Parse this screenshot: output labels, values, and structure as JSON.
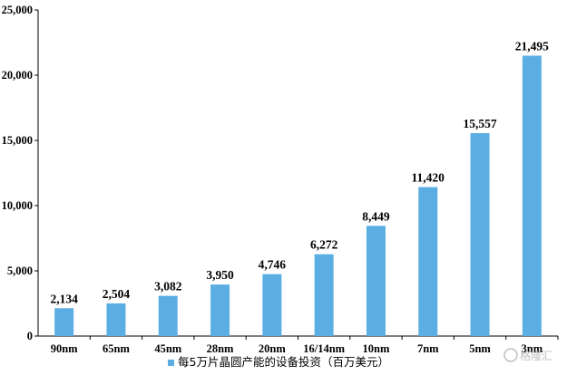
{
  "chart_data": {
    "type": "bar",
    "title": "",
    "xlabel": "",
    "ylabel": "",
    "categories": [
      "90nm",
      "65nm",
      "45nm",
      "28nm",
      "20nm",
      "16/14nm",
      "10nm",
      "7nm",
      "5nm",
      "3nm"
    ],
    "series": [
      {
        "name": "每5万片晶圆产能的设备投资（百万美元）",
        "values": [
          2134,
          2504,
          3082,
          3950,
          4746,
          6272,
          8449,
          11420,
          15557,
          21495
        ],
        "color": "#5baee4"
      }
    ],
    "data_labels": [
      "2,134",
      "2,504",
      "3,082",
      "3,950",
      "4,746",
      "6,272",
      "8,449",
      "11,420",
      "15,557",
      "21,495"
    ],
    "y_ticks": [
      0,
      5000,
      10000,
      15000,
      20000,
      25000
    ],
    "y_tick_labels": [
      "0",
      "5,000",
      "10,000",
      "15,000",
      "20,000",
      "25,000"
    ],
    "ylim": [
      0,
      25000
    ],
    "grid": false,
    "legend_position": "bottom",
    "legend_label": "每5万片晶圆产能的设备投资（百万美元）"
  },
  "watermark": {
    "text": "格隆汇"
  }
}
